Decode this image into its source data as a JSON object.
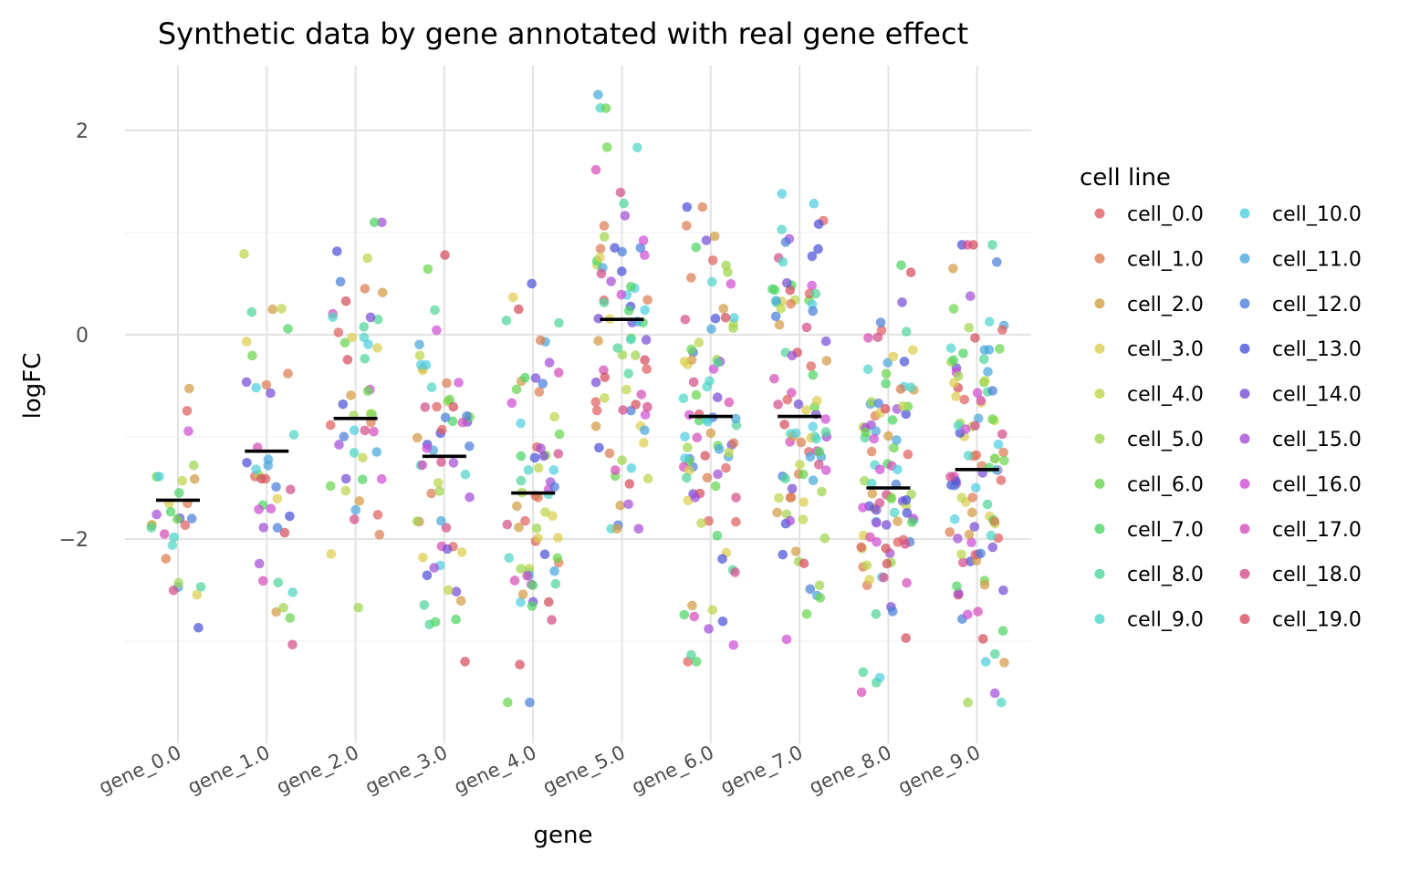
{
  "chart_data": {
    "type": "scatter",
    "subtype": "jittered strip plot with per-gene mean markers",
    "title": "Synthetic data by gene annotated with real gene effect",
    "xlabel": "gene",
    "ylabel": "logFC",
    "ylim": [
      -3.9,
      2.6
    ],
    "yticks": [
      -2,
      0,
      2
    ],
    "ytick_labels": [
      "−2",
      "0",
      "2"
    ],
    "grid": true,
    "legend_title": "cell line",
    "legend_position": "right",
    "categories": [
      "gene_0.0",
      "gene_1.0",
      "gene_2.0",
      "gene_3.0",
      "gene_4.0",
      "gene_5.0",
      "gene_6.0",
      "gene_7.0",
      "gene_8.0",
      "gene_9.0"
    ],
    "mean_markers": [
      -1.62,
      -1.14,
      -0.82,
      -1.19,
      -1.55,
      0.15,
      -0.8,
      -0.8,
      -1.5,
      -1.32
    ],
    "series": [
      {
        "name": "cell_0.0",
        "color": "#e05f5f"
      },
      {
        "name": "cell_1.0",
        "color": "#dd7d52"
      },
      {
        "name": "cell_2.0",
        "color": "#d39d45"
      },
      {
        "name": "cell_3.0",
        "color": "#dccd4e"
      },
      {
        "name": "cell_4.0",
        "color": "#bdd64a"
      },
      {
        "name": "cell_5.0",
        "color": "#9fd64e"
      },
      {
        "name": "cell_6.0",
        "color": "#6ad64e"
      },
      {
        "name": "cell_7.0",
        "color": "#4ed664"
      },
      {
        "name": "cell_8.0",
        "color": "#4ed699"
      },
      {
        "name": "cell_9.0",
        "color": "#4ed6c8"
      },
      {
        "name": "cell_10.0",
        "color": "#4fcfe0"
      },
      {
        "name": "cell_11.0",
        "color": "#4aa8dc"
      },
      {
        "name": "cell_12.0",
        "color": "#4b7fdb"
      },
      {
        "name": "cell_13.0",
        "color": "#4b52d8"
      },
      {
        "name": "cell_14.0",
        "color": "#764ed6"
      },
      {
        "name": "cell_15.0",
        "color": "#a34ed6"
      },
      {
        "name": "cell_16.0",
        "color": "#cf4ed6"
      },
      {
        "name": "cell_17.0",
        "color": "#d64eb9"
      },
      {
        "name": "cell_18.0",
        "color": "#d64e8a"
      },
      {
        "name": "cell_19.0",
        "color": "#d64e5c"
      }
    ],
    "points_per_gene": [
      30,
      40,
      50,
      60,
      70,
      80,
      90,
      95,
      100,
      110
    ],
    "gene_spread": [
      [
        -3.1,
        0.2
      ],
      [
        -3.05,
        0.95
      ],
      [
        -3.3,
        1.1
      ],
      [
        -3.2,
        0.78
      ],
      [
        -3.6,
        0.5
      ],
      [
        -1.9,
        2.35
      ],
      [
        -3.2,
        1.25
      ],
      [
        -3.1,
        1.38
      ],
      [
        -3.5,
        0.68
      ],
      [
        -3.6,
        0.88
      ]
    ]
  }
}
